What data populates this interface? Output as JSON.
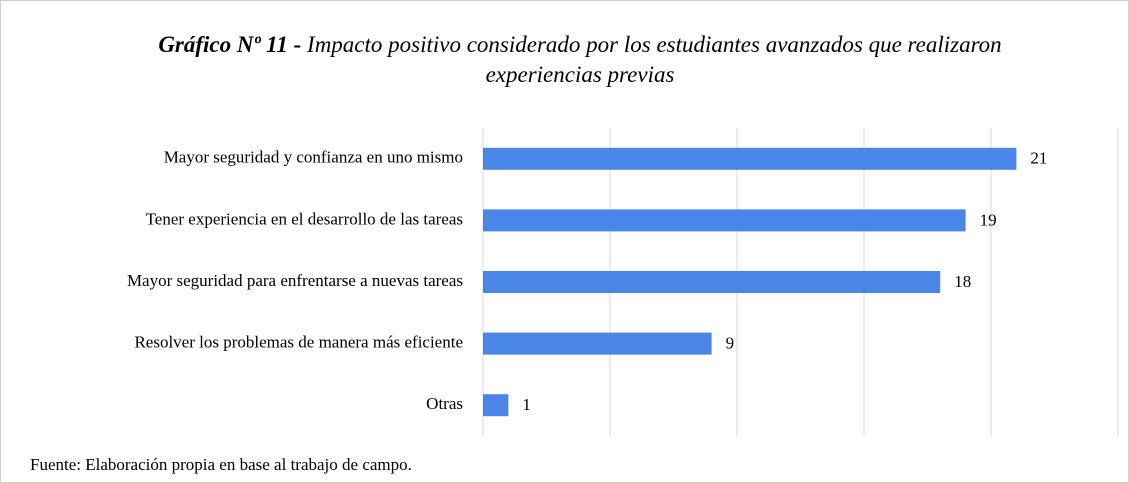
{
  "chart_data": {
    "type": "bar",
    "orientation": "horizontal",
    "title_label": "Gráfico Nº 11 -",
    "title": "Impacto positivo considerado por los estudiantes avanzados que realizaron experiencias previas",
    "categories": [
      "Mayor seguridad y confianza en uno mismo",
      "Tener experiencia en el desarrollo de las tareas",
      "Mayor seguridad para enfrentarse a nuevas tareas",
      "Resolver los problemas de manera más eficiente",
      "Otras"
    ],
    "values": [
      21,
      19,
      18,
      9,
      1
    ],
    "color": "#4a86e8",
    "xlim": [
      0,
      25
    ],
    "xticks": [
      0,
      5,
      10,
      15,
      20,
      25
    ],
    "grid": true,
    "source": "Fuente: Elaboración propia en base al trabajo de campo."
  }
}
